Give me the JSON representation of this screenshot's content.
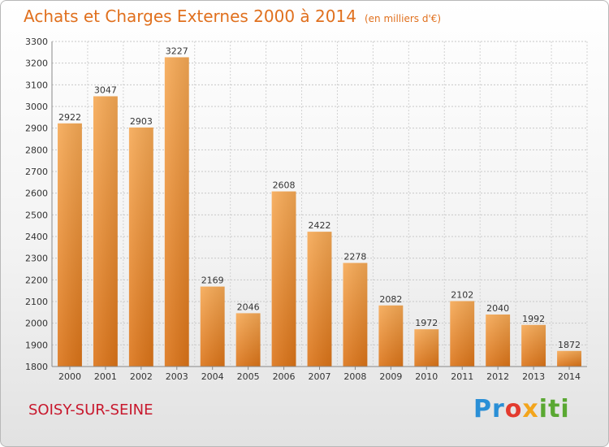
{
  "chart_data": {
    "type": "bar",
    "title": "Achats et Charges Externes 2000 à 2014",
    "subtitle": "(en milliers d'€)",
    "categories": [
      "2000",
      "2001",
      "2002",
      "2003",
      "2004",
      "2005",
      "2006",
      "2007",
      "2008",
      "2009",
      "2010",
      "2011",
      "2012",
      "2013",
      "2014"
    ],
    "values": [
      2922,
      3047,
      2903,
      3227,
      2169,
      2046,
      2608,
      2422,
      2278,
      2082,
      1972,
      2102,
      2040,
      1992,
      1872
    ],
    "ylim": [
      1800,
      3300
    ],
    "yticks": [
      1800,
      1900,
      2000,
      2100,
      2200,
      2300,
      2400,
      2500,
      2600,
      2700,
      2800,
      2900,
      3000,
      3100,
      3200,
      3300
    ],
    "grid": true,
    "xlabel": "",
    "ylabel": "",
    "bar_color": "#f0902c"
  },
  "location": "SOISY-SUR-SEINE",
  "logo": {
    "text": "Proxiti",
    "colors": [
      "#2a8fd6",
      "#e33b2f",
      "#f3a51c",
      "#5aa832"
    ]
  }
}
